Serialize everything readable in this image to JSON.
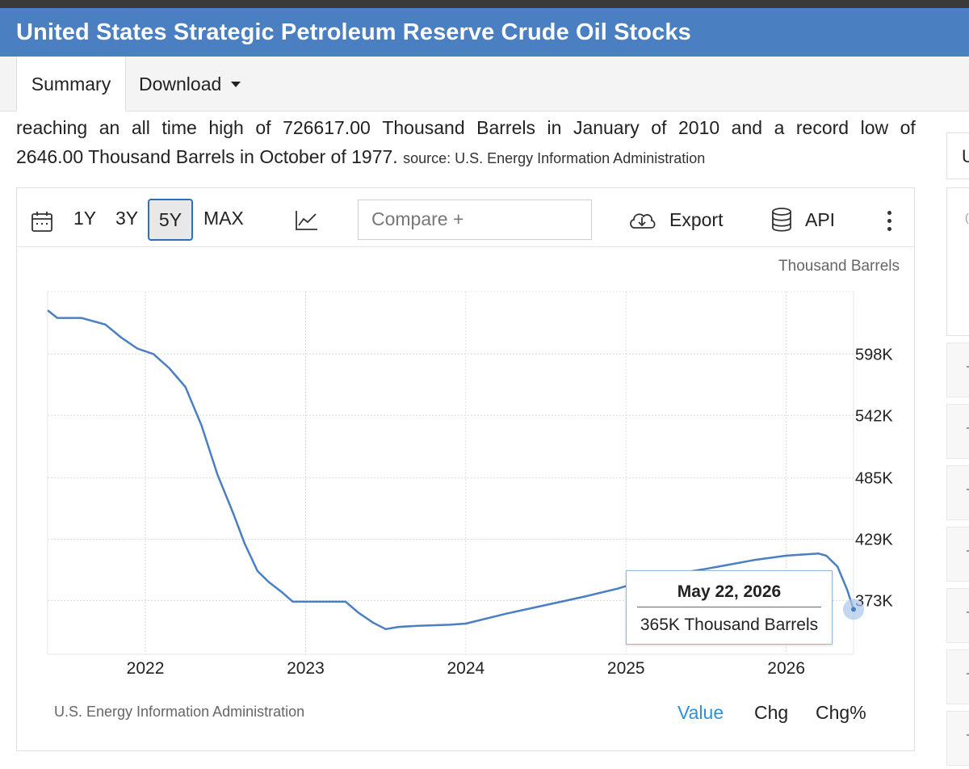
{
  "header": {
    "title": "United States Strategic Petroleum Reserve Crude Oil Stocks"
  },
  "tabs": {
    "summary": "Summary",
    "download": "Download"
  },
  "description": {
    "line1_words": [
      "reaching",
      "an",
      "all",
      "time",
      "high",
      "of",
      "726617.00",
      "Thousand",
      "Barrels",
      "in",
      "January",
      "of",
      "2010",
      "and",
      "a",
      "record",
      "low",
      "of"
    ],
    "line2": "2646.00 Thousand Barrels in October of 1977.",
    "source": "source: U.S. Energy Information Administration"
  },
  "right_panel": {
    "stub_letter": "U",
    "stub_small": "("
  },
  "toolbar": {
    "ranges": [
      "1Y",
      "3Y",
      "5Y",
      "MAX"
    ],
    "selected_range": "5Y",
    "compare_placeholder": "Compare +",
    "export_label": "Export",
    "api_label": "API"
  },
  "chart_meta": {
    "unit_label": "Thousand Barrels",
    "source_note": "U.S. Energy Information Administration",
    "modes": [
      "Value",
      "Chg",
      "Chg%"
    ],
    "active_mode": "Value",
    "tooltip_date": "May 22, 2026",
    "tooltip_value": "365K Thousand Barrels",
    "line_color": "#4a7fc1",
    "accent_color": "#2f8fd8"
  },
  "chart_data": {
    "type": "line",
    "title": "",
    "xlabel": "",
    "ylabel": "Thousand Barrels",
    "x_ticks": [
      "2022",
      "2023",
      "2024",
      "2025",
      "2026"
    ],
    "y_ticks": [
      {
        "value": 598,
        "label": "598K"
      },
      {
        "value": 542,
        "label": "542K"
      },
      {
        "value": 485,
        "label": "485K"
      },
      {
        "value": 429,
        "label": "429K"
      },
      {
        "value": 373,
        "label": "373K"
      }
    ],
    "ylim": [
      324,
      655
    ],
    "xlim": [
      2021.39,
      2026.42
    ],
    "grid": true,
    "series": [
      {
        "x": [
          2021.39,
          2021.45,
          2021.6,
          2021.75,
          2021.85,
          2021.95,
          2022.05,
          2022.15,
          2022.25,
          2022.35,
          2022.45,
          2022.55,
          2022.62,
          2022.7,
          2022.77,
          2022.85,
          2022.92,
          2023.0,
          2023.25,
          2023.33,
          2023.42,
          2023.5,
          2023.58,
          2023.7,
          2023.9,
          2024.0,
          2024.25,
          2024.5,
          2024.75,
          2024.95,
          2025.2,
          2025.5,
          2025.8,
          2026.0,
          2026.2,
          2026.25,
          2026.32,
          2026.38,
          2026.42
        ],
        "y": [
          638,
          631,
          631,
          625,
          613,
          603,
          598,
          585,
          568,
          533,
          488,
          452,
          425,
          400,
          390,
          381,
          372,
          372,
          372,
          362,
          353,
          347,
          349,
          350,
          351,
          352,
          361,
          369,
          377,
          384,
          395,
          402,
          410,
          414,
          416,
          414,
          404,
          383,
          365
        ]
      }
    ]
  }
}
